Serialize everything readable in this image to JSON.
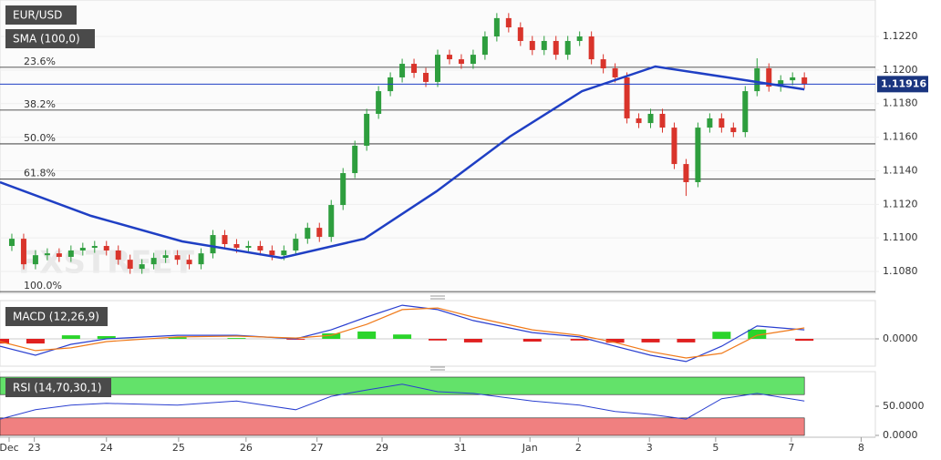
{
  "chart_data": [
    {
      "type": "candlestick",
      "title": "EUR/USD",
      "indicator": "SMA (100,0)",
      "watermark": "FXSTREET",
      "xlim": [
        0,
        74
      ],
      "xticks": [
        {
          "value": 0.77,
          "label": "Dec"
        },
        {
          "value": 2.9,
          "label": "23"
        },
        {
          "value": 9,
          "label": "24"
        },
        {
          "value": 15.1,
          "label": "25"
        },
        {
          "value": 20.8,
          "label": "26"
        },
        {
          "value": 26.8,
          "label": "27"
        },
        {
          "value": 32.3,
          "label": "29"
        },
        {
          "value": 38.9,
          "label": "31"
        },
        {
          "value": 44.8,
          "label": "Jan"
        },
        {
          "value": 48.9,
          "label": "2"
        },
        {
          "value": 54.9,
          "label": "3"
        },
        {
          "value": 60.5,
          "label": "5"
        },
        {
          "value": 66.9,
          "label": "7"
        },
        {
          "value": 72.8,
          "label": "8"
        }
      ],
      "ylim": [
        1.1067,
        1.12417
      ],
      "yticks": [
        {
          "value": 1.122,
          "label": "1.1220"
        },
        {
          "value": 1.12,
          "label": "1.1200"
        },
        {
          "value": 1.118,
          "label": "1.1180"
        },
        {
          "value": 1.116,
          "label": "1.1160"
        },
        {
          "value": 1.114,
          "label": "1.1140"
        },
        {
          "value": 1.112,
          "label": "1.1120"
        },
        {
          "value": 1.11,
          "label": "1.1100"
        },
        {
          "value": 1.108,
          "label": "1.1080"
        }
      ],
      "last_price": 1.11916,
      "fib_levels": [
        {
          "label": "23.6%",
          "value": 1.12016
        },
        {
          "label": "38.2%",
          "value": 1.11761
        },
        {
          "label": "50.0%",
          "value": 1.1156
        },
        {
          "label": "61.8%",
          "value": 1.1135
        },
        {
          "label": "100.0%",
          "value": 1.1068
        }
      ],
      "up_color": "#2e9e3e",
      "down_color": "#d9342b",
      "x": [
        1,
        2,
        3,
        4,
        5,
        6,
        7,
        8,
        9,
        10,
        11,
        12,
        13,
        14,
        15,
        16,
        17,
        18,
        19,
        20,
        21,
        22,
        23,
        24,
        25,
        26,
        27,
        28,
        29,
        30,
        31,
        32,
        33,
        34,
        35,
        36,
        37,
        38,
        39,
        40,
        41,
        42,
        43,
        44,
        45,
        46,
        47,
        48,
        49,
        50,
        51,
        52,
        53,
        54,
        55,
        56,
        57,
        58,
        59,
        60,
        61,
        62,
        63,
        64,
        65,
        66,
        67,
        68
      ],
      "open": [
        1.10952,
        1.10995,
        1.10843,
        1.10897,
        1.10908,
        1.10887,
        1.10925,
        1.10941,
        1.10952,
        1.10925,
        1.1087,
        1.10816,
        1.10843,
        1.10881,
        1.10897,
        1.1087,
        1.10843,
        1.10908,
        1.11017,
        1.10963,
        1.10941,
        1.10952,
        1.10925,
        1.10897,
        1.10925,
        1.10995,
        1.1106,
        1.11006,
        1.11196,
        1.11386,
        1.11549,
        1.11739,
        1.11874,
        1.11956,
        1.12037,
        1.11983,
        1.11929,
        1.12091,
        1.12064,
        1.12037,
        1.12091,
        1.122,
        1.12309,
        1.12254,
        1.12173,
        1.12119,
        1.12173,
        1.12091,
        1.12173,
        1.122,
        1.12064,
        1.1201,
        1.11956,
        1.11712,
        1.11684,
        1.11739,
        1.11657,
        1.1144,
        1.11332,
        1.11657,
        1.11712,
        1.11657,
        1.1163,
        1.11874,
        1.1201,
        1.11901,
        1.11939,
        1.11956
      ],
      "high": [
        1.11025,
        1.11025,
        1.10927,
        1.10938,
        1.10938,
        1.10955,
        1.10971,
        1.10982,
        1.10982,
        1.10955,
        1.109,
        1.10873,
        1.10911,
        1.10927,
        1.10927,
        1.109,
        1.10938,
        1.11047,
        1.11047,
        1.10993,
        1.10982,
        1.10982,
        1.10955,
        1.10955,
        1.11025,
        1.1109,
        1.1109,
        1.11226,
        1.11416,
        1.11579,
        1.11769,
        1.11904,
        1.11986,
        1.12067,
        1.12067,
        1.12013,
        1.12121,
        1.12121,
        1.12094,
        1.12121,
        1.1223,
        1.12339,
        1.12339,
        1.12284,
        1.12203,
        1.12203,
        1.12203,
        1.12203,
        1.1223,
        1.1223,
        1.12094,
        1.1204,
        1.11986,
        1.11742,
        1.11769,
        1.11769,
        1.11687,
        1.1147,
        1.11687,
        1.11742,
        1.11742,
        1.11687,
        1.11904,
        1.1207,
        1.1204,
        1.11969,
        1.11986,
        1.11986
      ],
      "low": [
        1.10922,
        1.10813,
        1.10813,
        1.10867,
        1.10857,
        1.10857,
        1.10895,
        1.10911,
        1.10895,
        1.1084,
        1.10786,
        1.10786,
        1.10813,
        1.10851,
        1.1084,
        1.10813,
        1.10813,
        1.10878,
        1.10933,
        1.10911,
        1.10911,
        1.10895,
        1.10867,
        1.10867,
        1.10895,
        1.10965,
        1.10976,
        1.10976,
        1.11166,
        1.11356,
        1.11519,
        1.11709,
        1.11844,
        1.11926,
        1.11953,
        1.11899,
        1.11899,
        1.12034,
        1.12007,
        1.12007,
        1.12061,
        1.1217,
        1.12224,
        1.12143,
        1.12089,
        1.12089,
        1.12061,
        1.12061,
        1.12143,
        1.12034,
        1.1198,
        1.11926,
        1.11682,
        1.11654,
        1.11654,
        1.11627,
        1.1141,
        1.1125,
        1.11302,
        1.11627,
        1.11627,
        1.116,
        1.116,
        1.11844,
        1.11871,
        1.11871,
        1.11909,
        1.11888
      ],
      "close": [
        1.10995,
        1.10843,
        1.10897,
        1.10908,
        1.10887,
        1.10925,
        1.10941,
        1.10952,
        1.10925,
        1.1087,
        1.10816,
        1.10843,
        1.10881,
        1.10897,
        1.1087,
        1.10843,
        1.10908,
        1.11017,
        1.10963,
        1.10941,
        1.10952,
        1.10925,
        1.10897,
        1.10925,
        1.10995,
        1.1106,
        1.11006,
        1.11196,
        1.11386,
        1.11549,
        1.11739,
        1.11874,
        1.11956,
        1.12037,
        1.11983,
        1.11929,
        1.12091,
        1.12064,
        1.12037,
        1.12091,
        1.122,
        1.12309,
        1.12254,
        1.12173,
        1.12119,
        1.12173,
        1.12091,
        1.12173,
        1.122,
        1.12064,
        1.1201,
        1.11956,
        1.11712,
        1.11684,
        1.11739,
        1.11657,
        1.1144,
        1.11332,
        1.11657,
        1.11712,
        1.11657,
        1.1163,
        1.11874,
        1.1201,
        1.11901,
        1.11939,
        1.11956,
        1.11918
      ],
      "sma": {
        "color": "#1f3fc4",
        "x": [
          0,
          7.7,
          15.4,
          23.8,
          30.8,
          36.9,
          43.1,
          49.2,
          55.4,
          61.5,
          68
        ],
        "values": [
          1.11332,
          1.11131,
          1.10979,
          1.10881,
          1.10995,
          1.11277,
          1.11603,
          1.11874,
          1.12021,
          1.11956,
          1.11885
        ]
      }
    },
    {
      "type": "macd",
      "title": "MACD (12,26,9)",
      "ylim": [
        -0.001,
        0.0014
      ],
      "yticks": [
        {
          "value": 0,
          "label": "0.0000"
        }
      ],
      "x": [
        0,
        3,
        6,
        9,
        15,
        20,
        25,
        28,
        31,
        34,
        37,
        40,
        45,
        49,
        52,
        55,
        58,
        61,
        64,
        68
      ],
      "series": [
        {
          "name": "MACD",
          "color": "#2a3fd0",
          "values": [
            -0.00027,
            -0.0006,
            -0.0002,
            0,
            0.00013,
            0.00013,
            0,
            0.00033,
            0.0008,
            0.00123,
            0.00107,
            0.00067,
            0.00023,
            7e-05,
            -0.00027,
            -0.0006,
            -0.00083,
            -0.00027,
            0.00047,
            0.00033
          ]
        },
        {
          "name": "Signal",
          "color": "#f07a1a",
          "values": [
            -0.0001,
            -0.00043,
            -0.00033,
            -0.0001,
            7e-05,
            0.0001,
            3e-05,
            0.00013,
            0.00053,
            0.00107,
            0.00113,
            0.0008,
            0.00033,
            0.00013,
            -0.00013,
            -0.00047,
            -0.0007,
            -0.00053,
            0.00013,
            0.0004
          ]
        }
      ],
      "histogram": [
        -0.00017,
        -0.00017,
        0.00013,
        0.0001,
        6e-05,
        3e-05,
        -3e-05,
        0.0002,
        0.00027,
        0.00016,
        -6e-05,
        -0.00013,
        -0.0001,
        -6e-05,
        -0.00014,
        -0.00013,
        -0.00013,
        0.00026,
        0.00034,
        -7e-05
      ],
      "up_color": "#2bd42b",
      "down_color": "#e02020"
    },
    {
      "type": "rsi",
      "title": "RSI (14,70,30,1)",
      "ylim": [
        0,
        100
      ],
      "yticks": [
        {
          "value": 50,
          "label": "50.0000"
        },
        {
          "value": 0,
          "label": "0.0000"
        }
      ],
      "upper_band": 70,
      "lower_band": 30,
      "color": "#2a3fd0",
      "x": [
        0,
        3,
        6,
        9,
        15,
        20,
        25,
        28,
        31,
        34,
        37,
        40,
        45,
        49,
        52,
        55,
        58,
        61,
        64,
        68
      ],
      "values": [
        28,
        44,
        52,
        55,
        52,
        59,
        44,
        67,
        78,
        88,
        75,
        72,
        59,
        52,
        41,
        36,
        28,
        63,
        72,
        59
      ]
    }
  ]
}
